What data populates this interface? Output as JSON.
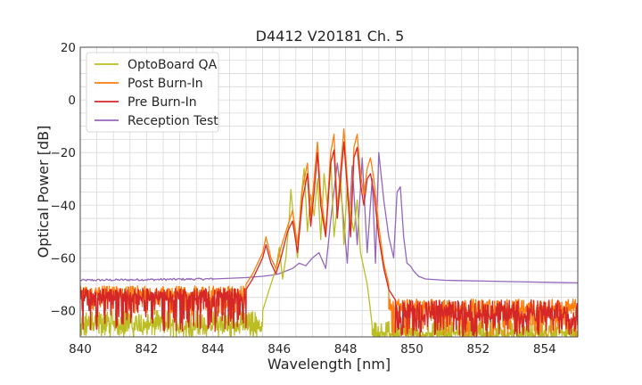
{
  "chart_data": {
    "type": "line",
    "title": "D4412 V20181 Ch. 5",
    "xlabel": "Wavelength [nm]",
    "ylabel": "Optical Power [dB]",
    "xlim": [
      840,
      855
    ],
    "ylim": [
      -90,
      20
    ],
    "xticks": [
      840,
      842,
      844,
      846,
      848,
      850,
      852,
      854
    ],
    "yticks": [
      -80,
      -60,
      -40,
      -20,
      0,
      20
    ],
    "xtick_labels": [
      "840",
      "842",
      "844",
      "846",
      "848",
      "850",
      "852",
      "854"
    ],
    "ytick_labels": [
      "−80",
      "−60",
      "−40",
      "−20",
      "0",
      "20"
    ],
    "grid": true,
    "legend_position": "top-left",
    "series": [
      {
        "name": "OptoBoard QA",
        "color": "#bcbd22",
        "noise_floor": {
          "range": [
            840.0,
            845.5
          ],
          "mean": -84,
          "min": -90,
          "noise": "high"
        },
        "noise_floor_right": {
          "range": [
            848.8,
            855.0
          ],
          "mean": -88,
          "min": -90,
          "noise": "high"
        },
        "x": [
          845.5,
          845.7,
          845.9,
          846.0,
          846.1,
          846.2,
          846.3,
          846.35,
          846.45,
          846.55,
          846.65,
          846.75,
          846.85,
          846.95,
          847.05,
          847.15,
          847.25,
          847.35,
          847.45,
          847.55,
          847.65,
          847.75,
          847.85,
          847.95,
          848.05,
          848.15,
          848.25,
          848.35,
          848.45,
          848.55,
          848.65,
          848.75,
          848.8
        ],
        "y": [
          -80,
          -72,
          -64,
          -56,
          -68,
          -60,
          -45,
          -34,
          -48,
          -60,
          -38,
          -26,
          -50,
          -36,
          -44,
          -30,
          -53,
          -28,
          -40,
          -22,
          -52,
          -40,
          -28,
          -55,
          -32,
          -44,
          -50,
          -38,
          -58,
          -64,
          -70,
          -80,
          -86
        ]
      },
      {
        "name": "Post Burn-In",
        "color": "#ff7f0e",
        "noise_floor": {
          "range": [
            840.0,
            845.0
          ],
          "mean": -73,
          "min": -82,
          "noise": "medium"
        },
        "noise_floor_right": {
          "range": [
            849.3,
            855.0
          ],
          "mean": -78,
          "min": -90,
          "noise": "medium"
        },
        "x": [
          845.0,
          845.2,
          845.35,
          845.5,
          845.6,
          845.75,
          845.9,
          846.05,
          846.25,
          846.4,
          846.55,
          846.7,
          846.85,
          846.95,
          847.05,
          847.15,
          847.25,
          847.4,
          847.55,
          847.65,
          847.75,
          847.85,
          847.95,
          848.05,
          848.15,
          848.25,
          848.35,
          848.45,
          848.55,
          848.65,
          848.75,
          848.85,
          849.0,
          849.15,
          849.3
        ],
        "y": [
          -70,
          -66,
          -62,
          -58,
          -52,
          -60,
          -64,
          -56,
          -48,
          -42,
          -55,
          -34,
          -24,
          -44,
          -30,
          -16,
          -36,
          -50,
          -20,
          -13,
          -42,
          -26,
          -11,
          -30,
          -50,
          -18,
          -13,
          -28,
          -36,
          -26,
          -22,
          -30,
          -48,
          -62,
          -70
        ]
      },
      {
        "name": "Pre Burn-In",
        "color": "#d62728",
        "noise_floor": {
          "range": [
            840.0,
            845.0
          ],
          "mean": -74,
          "min": -88,
          "noise": "medium"
        },
        "noise_floor_right": {
          "range": [
            849.5,
            855.0
          ],
          "mean": -80,
          "min": -90,
          "noise": "high"
        },
        "x": [
          845.0,
          845.2,
          845.35,
          845.5,
          845.6,
          845.75,
          845.9,
          846.05,
          846.25,
          846.4,
          846.55,
          846.7,
          846.85,
          846.95,
          847.05,
          847.15,
          847.25,
          847.4,
          847.55,
          847.65,
          847.75,
          847.85,
          847.95,
          848.05,
          848.15,
          848.25,
          848.35,
          848.45,
          848.55,
          848.65,
          848.75,
          848.85,
          849.0,
          849.15,
          849.3,
          849.5
        ],
        "y": [
          -72,
          -68,
          -64,
          -60,
          -55,
          -62,
          -66,
          -60,
          -50,
          -46,
          -58,
          -38,
          -28,
          -48,
          -35,
          -20,
          -40,
          -52,
          -24,
          -19,
          -45,
          -30,
          -16,
          -34,
          -52,
          -22,
          -18,
          -32,
          -40,
          -30,
          -28,
          -35,
          -52,
          -64,
          -72,
          -76
        ]
      },
      {
        "name": "Reception Test",
        "color": "#9467bd",
        "baseline_left": -68.5,
        "baseline_right": -69.5,
        "x": [
          840.0,
          844.0,
          845.0,
          845.5,
          845.8,
          846.0,
          846.2,
          846.4,
          846.6,
          846.8,
          847.0,
          847.2,
          847.4,
          847.6,
          847.75,
          847.9,
          848.05,
          848.2,
          848.35,
          848.5,
          848.65,
          848.8,
          848.9,
          849.0,
          849.15,
          849.3,
          849.45,
          849.55,
          849.65,
          849.75,
          849.85,
          849.95,
          850.05,
          850.2,
          850.4,
          851.0,
          853.0,
          855.0
        ],
        "y": [
          -68.5,
          -68.0,
          -67.5,
          -67.0,
          -66.5,
          -66.0,
          -65.0,
          -64.0,
          -62.0,
          -63.0,
          -60.0,
          -58.0,
          -64.0,
          -40.0,
          -24.0,
          -40.0,
          -62.0,
          -25.0,
          -55.0,
          -22.0,
          -58.0,
          -30.0,
          -62.0,
          -20.0,
          -38.0,
          -52.0,
          -60.0,
          -35.0,
          -33.0,
          -52.0,
          -62.0,
          -63.0,
          -65.0,
          -67.0,
          -68.0,
          -68.5,
          -69.0,
          -69.5
        ]
      }
    ]
  }
}
